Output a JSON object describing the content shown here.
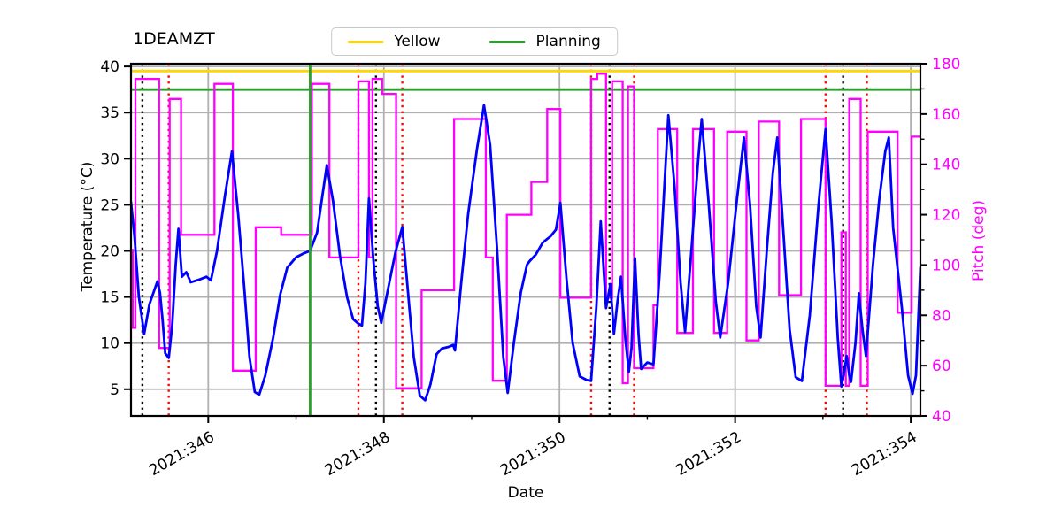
{
  "chart_data": {
    "type": "line",
    "title": "1DEAMZT",
    "xlabel": "Date",
    "ylabel_left": "Temperature (°C)",
    "ylabel_right": "Pitch (deg)",
    "grid": true,
    "legend": {
      "position": "upper center",
      "entries": [
        {
          "label": "Yellow",
          "color": "#ffd700"
        },
        {
          "label": "Planning",
          "color": "#2ca02c"
        }
      ]
    },
    "x_axis": {
      "min": 345.12,
      "max": 354.11,
      "major_ticks": [
        346,
        348,
        350,
        352,
        354
      ],
      "major_tick_labels": [
        "2021:346",
        "2021:348",
        "2021:350",
        "2021:352",
        "2021:354"
      ],
      "minor_ticks": [
        347,
        349,
        351,
        353
      ],
      "tick_label_rotation_deg": -30
    },
    "y_axis_left": {
      "min": 2.1,
      "max": 40.3,
      "ticks": [
        5,
        10,
        15,
        20,
        25,
        30,
        35,
        40
      ]
    },
    "y_axis_right": {
      "min": 40,
      "max": 180,
      "ticks": [
        40,
        60,
        80,
        100,
        120,
        140,
        160,
        180
      ],
      "minor_ticks": [
        50,
        70,
        90,
        110,
        130,
        150,
        170
      ]
    },
    "limit_lines": {
      "yellow_limit_temp": 39.5,
      "planning_limit_temp": 37.5
    },
    "vlines": {
      "green_solid": [
        347.16
      ],
      "black_dotted": [
        345.25,
        347.91,
        350.57,
        353.23
      ],
      "red_dotted": [
        345.55,
        347.71,
        348.21,
        350.36,
        350.85,
        353.03,
        353.5
      ]
    },
    "series": [
      {
        "name": "1DEAMZT temperature",
        "axis": "left",
        "color": "#0000ff",
        "style": "solid",
        "points": [
          [
            345.12,
            25.3
          ],
          [
            345.16,
            21.5
          ],
          [
            345.21,
            15.0
          ],
          [
            345.27,
            11.0
          ],
          [
            345.33,
            14.2
          ],
          [
            345.42,
            16.7
          ],
          [
            345.45,
            15.5
          ],
          [
            345.48,
            12.5
          ],
          [
            345.51,
            8.9
          ],
          [
            345.55,
            8.4
          ],
          [
            345.59,
            12.0
          ],
          [
            345.63,
            18.6
          ],
          [
            345.66,
            22.4
          ],
          [
            345.7,
            17.2
          ],
          [
            345.75,
            17.7
          ],
          [
            345.8,
            16.6
          ],
          [
            345.9,
            16.9
          ],
          [
            345.98,
            17.2
          ],
          [
            346.03,
            16.8
          ],
          [
            346.1,
            20.0
          ],
          [
            346.19,
            26.0
          ],
          [
            346.27,
            30.8
          ],
          [
            346.34,
            24.0
          ],
          [
            346.41,
            16.0
          ],
          [
            346.47,
            8.5
          ],
          [
            346.53,
            4.7
          ],
          [
            346.58,
            4.4
          ],
          [
            346.65,
            6.5
          ],
          [
            346.74,
            10.6
          ],
          [
            346.82,
            15.3
          ],
          [
            346.9,
            18.2
          ],
          [
            347.0,
            19.3
          ],
          [
            347.08,
            19.7
          ],
          [
            347.16,
            20.0
          ],
          [
            347.24,
            22.0
          ],
          [
            347.3,
            26.0
          ],
          [
            347.35,
            29.3
          ],
          [
            347.42,
            25.5
          ],
          [
            347.5,
            19.5
          ],
          [
            347.58,
            15.0
          ],
          [
            347.65,
            12.6
          ],
          [
            347.71,
            12.1
          ],
          [
            347.75,
            11.9
          ],
          [
            347.79,
            16.5
          ],
          [
            347.83,
            25.7
          ],
          [
            347.88,
            19.0
          ],
          [
            347.93,
            14.0
          ],
          [
            347.97,
            12.2
          ],
          [
            348.04,
            15.5
          ],
          [
            348.13,
            19.8
          ],
          [
            348.21,
            22.6
          ],
          [
            348.28,
            15.0
          ],
          [
            348.34,
            8.5
          ],
          [
            348.41,
            4.3
          ],
          [
            348.47,
            3.8
          ],
          [
            348.53,
            5.5
          ],
          [
            348.6,
            8.8
          ],
          [
            348.66,
            9.4
          ],
          [
            348.74,
            9.6
          ],
          [
            348.79,
            9.8
          ],
          [
            348.81,
            9.2
          ],
          [
            348.88,
            16.5
          ],
          [
            348.96,
            24.0
          ],
          [
            349.06,
            31.0
          ],
          [
            349.14,
            35.8
          ],
          [
            349.21,
            31.5
          ],
          [
            349.29,
            20.0
          ],
          [
            349.36,
            8.5
          ],
          [
            349.41,
            4.6
          ],
          [
            349.48,
            10.0
          ],
          [
            349.56,
            15.5
          ],
          [
            349.63,
            18.5
          ],
          [
            349.66,
            18.9
          ],
          [
            349.73,
            19.6
          ],
          [
            349.81,
            20.9
          ],
          [
            349.9,
            21.6
          ],
          [
            349.96,
            22.3
          ],
          [
            350.01,
            25.2
          ],
          [
            350.08,
            17.0
          ],
          [
            350.15,
            10.0
          ],
          [
            350.23,
            6.4
          ],
          [
            350.31,
            6.0
          ],
          [
            350.36,
            5.9
          ],
          [
            350.42,
            14.0
          ],
          [
            350.47,
            23.2
          ],
          [
            350.53,
            13.8
          ],
          [
            350.58,
            16.4
          ],
          [
            350.62,
            11.0
          ],
          [
            350.66,
            14.5
          ],
          [
            350.7,
            17.2
          ],
          [
            350.75,
            10.5
          ],
          [
            350.79,
            6.9
          ],
          [
            350.82,
            9.5
          ],
          [
            350.86,
            19.2
          ],
          [
            350.9,
            11.0
          ],
          [
            350.93,
            7.2
          ],
          [
            351.0,
            7.9
          ],
          [
            351.07,
            7.7
          ],
          [
            351.14,
            17.5
          ],
          [
            351.2,
            28.0
          ],
          [
            351.24,
            34.7
          ],
          [
            351.31,
            27.0
          ],
          [
            351.38,
            16.5
          ],
          [
            351.43,
            11.2
          ],
          [
            351.51,
            21.0
          ],
          [
            351.58,
            30.0
          ],
          [
            351.62,
            34.3
          ],
          [
            351.7,
            25.0
          ],
          [
            351.78,
            14.5
          ],
          [
            351.83,
            10.6
          ],
          [
            351.92,
            16.5
          ],
          [
            352.02,
            25.5
          ],
          [
            352.1,
            32.3
          ],
          [
            352.17,
            25.0
          ],
          [
            352.24,
            14.0
          ],
          [
            352.29,
            10.6
          ],
          [
            352.36,
            20.0
          ],
          [
            352.43,
            28.5
          ],
          [
            352.48,
            32.3
          ],
          [
            352.55,
            22.0
          ],
          [
            352.62,
            11.5
          ],
          [
            352.69,
            6.3
          ],
          [
            352.76,
            5.9
          ],
          [
            352.85,
            13.0
          ],
          [
            352.95,
            25.0
          ],
          [
            353.03,
            33.2
          ],
          [
            353.1,
            23.0
          ],
          [
            353.17,
            10.5
          ],
          [
            353.21,
            5.3
          ],
          [
            353.24,
            6.8
          ],
          [
            353.27,
            8.6
          ],
          [
            353.3,
            6.5
          ],
          [
            353.32,
            5.8
          ],
          [
            353.37,
            10.0
          ],
          [
            353.41,
            15.4
          ],
          [
            353.45,
            11.5
          ],
          [
            353.49,
            8.6
          ],
          [
            353.57,
            18.5
          ],
          [
            353.64,
            25.5
          ],
          [
            353.71,
            30.8
          ],
          [
            353.75,
            32.3
          ],
          [
            353.8,
            22.5
          ],
          [
            353.9,
            13.7
          ],
          [
            353.97,
            6.5
          ],
          [
            354.02,
            4.5
          ],
          [
            354.06,
            6.5
          ],
          [
            354.11,
            18.2
          ]
        ]
      },
      {
        "name": "Pitch",
        "axis": "right",
        "color": "#ff00ff",
        "style": "step",
        "segments": [
          [
            345.12,
            345.14,
            106
          ],
          [
            345.14,
            345.17,
            75
          ],
          [
            345.17,
            345.44,
            174
          ],
          [
            345.44,
            345.56,
            67
          ],
          [
            345.56,
            345.69,
            166
          ],
          [
            345.69,
            346.07,
            112
          ],
          [
            346.07,
            346.28,
            172
          ],
          [
            346.28,
            346.54,
            58
          ],
          [
            346.54,
            346.83,
            115
          ],
          [
            346.83,
            347.18,
            112
          ],
          [
            347.18,
            347.38,
            172
          ],
          [
            347.38,
            347.71,
            103
          ],
          [
            347.71,
            347.83,
            173
          ],
          [
            347.83,
            347.87,
            103
          ],
          [
            347.87,
            347.98,
            174
          ],
          [
            347.98,
            348.14,
            168
          ],
          [
            348.14,
            348.43,
            51
          ],
          [
            348.43,
            348.8,
            90
          ],
          [
            348.8,
            349.16,
            158
          ],
          [
            349.16,
            349.24,
            103
          ],
          [
            349.24,
            349.4,
            54
          ],
          [
            349.4,
            349.68,
            120
          ],
          [
            349.68,
            349.86,
            133
          ],
          [
            349.86,
            350.01,
            162
          ],
          [
            350.01,
            350.36,
            87
          ],
          [
            350.36,
            350.43,
            174
          ],
          [
            350.43,
            350.53,
            176
          ],
          [
            350.53,
            350.6,
            87
          ],
          [
            350.6,
            350.72,
            173
          ],
          [
            350.72,
            350.78,
            53
          ],
          [
            350.78,
            350.85,
            171
          ],
          [
            350.85,
            351.07,
            59
          ],
          [
            351.07,
            351.12,
            84
          ],
          [
            351.12,
            351.34,
            154
          ],
          [
            351.34,
            351.52,
            73
          ],
          [
            351.52,
            351.76,
            154
          ],
          [
            351.76,
            351.91,
            73
          ],
          [
            351.91,
            352.13,
            153
          ],
          [
            352.13,
            352.27,
            70
          ],
          [
            352.27,
            352.5,
            157
          ],
          [
            352.5,
            352.75,
            88
          ],
          [
            352.75,
            353.03,
            158
          ],
          [
            353.03,
            353.21,
            52
          ],
          [
            353.21,
            353.26,
            113
          ],
          [
            353.26,
            353.3,
            52
          ],
          [
            353.3,
            353.43,
            166
          ],
          [
            353.43,
            353.51,
            52
          ],
          [
            353.51,
            353.85,
            153
          ],
          [
            353.85,
            354.01,
            81
          ],
          [
            354.01,
            354.11,
            151
          ]
        ]
      }
    ],
    "colors": {
      "temperature_line": "#0000ff",
      "pitch_line": "#ff00ff",
      "yellow_limit": "#ffd700",
      "planning_limit": "#2ca02c",
      "green_vline": "#2ca02c",
      "black_vline": "#000000",
      "red_vline": "#ff0000",
      "grid": "#b0b0b0",
      "spine": "#000000",
      "right_axis_text": "#ff00ff"
    }
  }
}
